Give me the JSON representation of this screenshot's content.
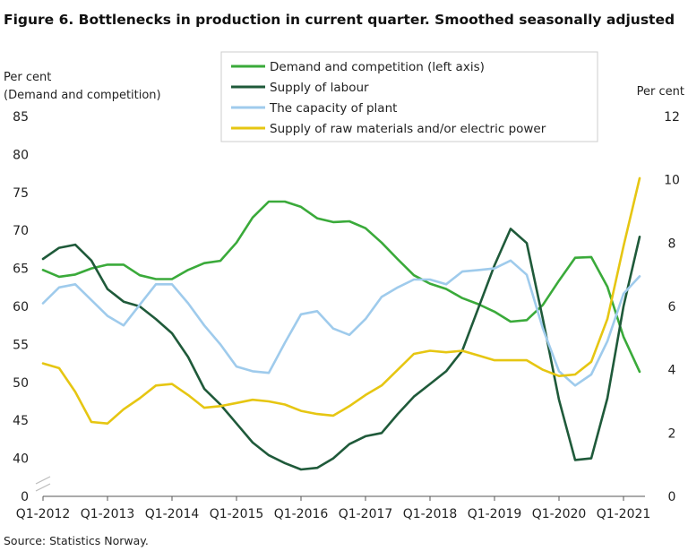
{
  "chart_data": {
    "type": "line",
    "title": "Figure 6. Bottlenecks in production in current quarter. Smoothed seasonally adjusted",
    "left_axis_label_line1": "Per cent",
    "left_axis_label_line2": "(Demand  and competition)",
    "right_axis_label": "Per cent",
    "source": "Source: Statistics Norway.",
    "x_tick_labels": [
      "Q1-2012",
      "Q1-2013",
      "Q1-2014",
      "Q1-2015",
      "Q1-2016",
      "Q1-2017",
      "Q1-2018",
      "Q1-2019",
      "Q1-2020",
      "Q1-2021"
    ],
    "x_range": [
      0,
      37.3
    ],
    "left_ticks": [
      "0",
      "40",
      "45",
      "50",
      "55",
      "60",
      "65",
      "70",
      "75",
      "80",
      "85"
    ],
    "right_ticks": [
      "0",
      "2",
      "4",
      "6",
      "8",
      "10",
      "12"
    ],
    "left_range": [
      35,
      85
    ],
    "right_range": [
      0,
      12
    ],
    "axis_break": true,
    "grid": false,
    "legend_position": "top-center",
    "series": [
      {
        "name": "Demand and competition (left axis)",
        "axis": "left",
        "color": "#3aaa3a",
        "values": [
          [
            0,
            64.8
          ],
          [
            1,
            63.9
          ],
          [
            2,
            64.2
          ],
          [
            3,
            65.0
          ],
          [
            4,
            65.5
          ],
          [
            5,
            65.5
          ],
          [
            6,
            64.1
          ],
          [
            7,
            63.6
          ],
          [
            8,
            63.6
          ],
          [
            9,
            64.8
          ],
          [
            10,
            65.7
          ],
          [
            11,
            66.0
          ],
          [
            12,
            68.4
          ],
          [
            13,
            71.7
          ],
          [
            14,
            73.8
          ],
          [
            15,
            73.8
          ],
          [
            16,
            73.1
          ],
          [
            17,
            71.6
          ],
          [
            18,
            71.1
          ],
          [
            19,
            71.2
          ],
          [
            20,
            70.3
          ],
          [
            21,
            68.4
          ],
          [
            22,
            66.2
          ],
          [
            23,
            64.1
          ],
          [
            24,
            63.0
          ],
          [
            25,
            62.3
          ],
          [
            26,
            61.1
          ],
          [
            27,
            60.3
          ],
          [
            28,
            59.3
          ],
          [
            29,
            58.0
          ],
          [
            30,
            58.2
          ],
          [
            31,
            60.2
          ],
          [
            32,
            63.4
          ],
          [
            33,
            66.4
          ],
          [
            34,
            66.5
          ],
          [
            35,
            62.6
          ],
          [
            36,
            56.0
          ],
          [
            37,
            51.4
          ]
        ]
      },
      {
        "name": "Supply of labour",
        "axis": "right",
        "color": "#1f5a3a",
        "values": [
          [
            0,
            7.5
          ],
          [
            1,
            7.85
          ],
          [
            2,
            7.95
          ],
          [
            3,
            7.45
          ],
          [
            4,
            6.55
          ],
          [
            5,
            6.15
          ],
          [
            6,
            6.0
          ],
          [
            7,
            5.6
          ],
          [
            8,
            5.15
          ],
          [
            9,
            4.4
          ],
          [
            10,
            3.4
          ],
          [
            11,
            2.9
          ],
          [
            12,
            2.3
          ],
          [
            13,
            1.7
          ],
          [
            14,
            1.3
          ],
          [
            15,
            1.05
          ],
          [
            16,
            0.85
          ],
          [
            17,
            0.9
          ],
          [
            18,
            1.2
          ],
          [
            19,
            1.65
          ],
          [
            20,
            1.9
          ],
          [
            21,
            2.0
          ],
          [
            22,
            2.6
          ],
          [
            23,
            3.15
          ],
          [
            24,
            3.55
          ],
          [
            25,
            3.95
          ],
          [
            26,
            4.6
          ],
          [
            27,
            5.95
          ],
          [
            28,
            7.3
          ],
          [
            29,
            8.45
          ],
          [
            30,
            8.0
          ],
          [
            31,
            5.6
          ],
          [
            32,
            3.05
          ],
          [
            33,
            1.15
          ],
          [
            34,
            1.2
          ],
          [
            35,
            3.1
          ],
          [
            36,
            6.0
          ],
          [
            37,
            8.2
          ]
        ]
      },
      {
        "name": "The capacity of plant",
        "axis": "right",
        "color": "#9fcbec",
        "values": [
          [
            0,
            6.1
          ],
          [
            1,
            6.6
          ],
          [
            2,
            6.7
          ],
          [
            3,
            6.2
          ],
          [
            4,
            5.7
          ],
          [
            5,
            5.4
          ],
          [
            6,
            6.05
          ],
          [
            7,
            6.7
          ],
          [
            8,
            6.7
          ],
          [
            9,
            6.1
          ],
          [
            10,
            5.4
          ],
          [
            11,
            4.8
          ],
          [
            12,
            4.1
          ],
          [
            13,
            3.95
          ],
          [
            14,
            3.9
          ],
          [
            15,
            4.85
          ],
          [
            16,
            5.75
          ],
          [
            17,
            5.85
          ],
          [
            18,
            5.3
          ],
          [
            19,
            5.1
          ],
          [
            20,
            5.6
          ],
          [
            21,
            6.3
          ],
          [
            22,
            6.6
          ],
          [
            23,
            6.85
          ],
          [
            24,
            6.85
          ],
          [
            25,
            6.7
          ],
          [
            26,
            7.1
          ],
          [
            27,
            7.15
          ],
          [
            28,
            7.2
          ],
          [
            29,
            7.45
          ],
          [
            30,
            7.0
          ],
          [
            31,
            5.3
          ],
          [
            32,
            3.95
          ],
          [
            33,
            3.5
          ],
          [
            34,
            3.85
          ],
          [
            35,
            4.9
          ],
          [
            36,
            6.4
          ],
          [
            37,
            6.95
          ]
        ]
      },
      {
        "name": "Supply of raw materials and/or electric power",
        "axis": "right",
        "color": "#e6c612",
        "values": [
          [
            0,
            4.2
          ],
          [
            1,
            4.05
          ],
          [
            2,
            3.3
          ],
          [
            3,
            2.35
          ],
          [
            4,
            2.3
          ],
          [
            5,
            2.75
          ],
          [
            6,
            3.1
          ],
          [
            7,
            3.5
          ],
          [
            8,
            3.55
          ],
          [
            9,
            3.2
          ],
          [
            10,
            2.8
          ],
          [
            11,
            2.85
          ],
          [
            12,
            2.95
          ],
          [
            13,
            3.05
          ],
          [
            14,
            3.0
          ],
          [
            15,
            2.9
          ],
          [
            16,
            2.7
          ],
          [
            17,
            2.6
          ],
          [
            18,
            2.55
          ],
          [
            19,
            2.85
          ],
          [
            20,
            3.2
          ],
          [
            21,
            3.5
          ],
          [
            22,
            4.0
          ],
          [
            23,
            4.5
          ],
          [
            24,
            4.6
          ],
          [
            25,
            4.55
          ],
          [
            26,
            4.6
          ],
          [
            27,
            4.45
          ],
          [
            28,
            4.3
          ],
          [
            29,
            4.3
          ],
          [
            30,
            4.3
          ],
          [
            31,
            4.0
          ],
          [
            32,
            3.8
          ],
          [
            33,
            3.85
          ],
          [
            34,
            4.25
          ],
          [
            35,
            5.6
          ],
          [
            36,
            7.9
          ],
          [
            37,
            10.05
          ]
        ]
      }
    ]
  }
}
